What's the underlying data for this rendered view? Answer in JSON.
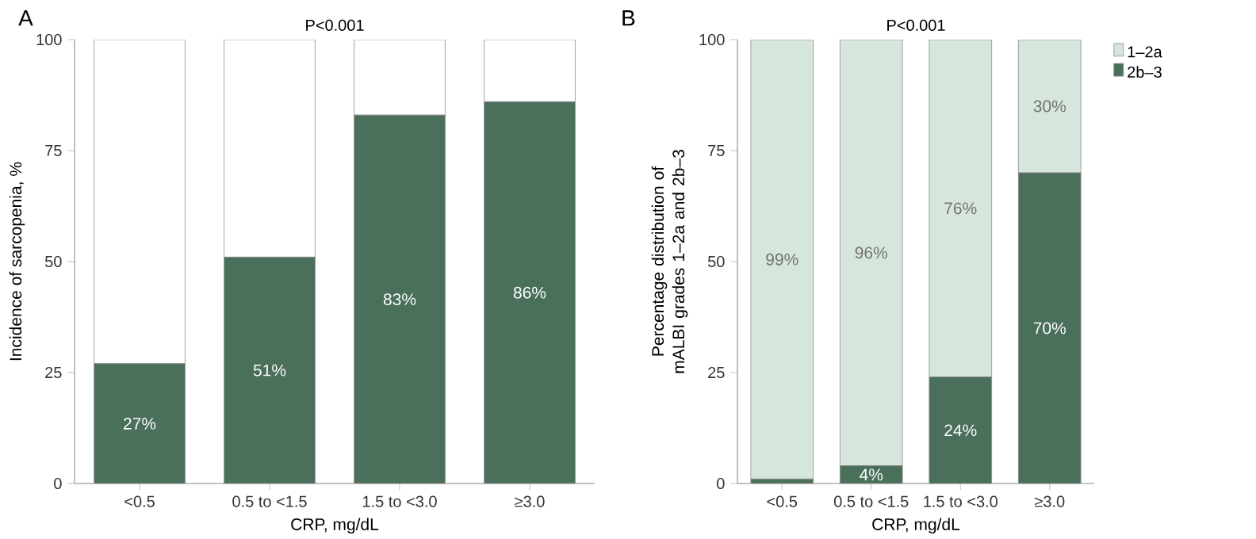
{
  "chart_data": [
    {
      "type": "bar",
      "title": "P<0.001",
      "xlabel": "CRP, mg/dL",
      "ylabel": "Incidence of sarcopenia, %",
      "annotations": [
        "A"
      ],
      "categories": [
        "<0.5",
        "0.5 to <1.5",
        "1.5 to <3.0",
        "≥3.0"
      ],
      "stacked": true,
      "ylim": [
        0,
        100
      ],
      "yticks": [
        0,
        25,
        50,
        75,
        100
      ],
      "legend": false,
      "series": [
        {
          "color": "#4a6f5a",
          "values": [
            27,
            51,
            83,
            86
          ],
          "value_labels": [
            "27%",
            "51%",
            "83%",
            "86%"
          ]
        },
        {
          "color": "#ffffff",
          "values": [
            73,
            49,
            17,
            14
          ],
          "value_labels": [
            null,
            null,
            null,
            null
          ]
        }
      ]
    },
    {
      "type": "bar",
      "title": "P<0.001",
      "xlabel": "CRP, mg/dL",
      "ylabel": "Percentage distribution of mALBI grades 1–2a and 2b–3",
      "annotations": [
        "B"
      ],
      "categories": [
        "<0.5",
        "0.5 to <1.5",
        "1.5 to <3.0",
        "≥3.0"
      ],
      "stacked": true,
      "ylim": [
        0,
        100
      ],
      "yticks": [
        0,
        25,
        50,
        75,
        100
      ],
      "legend": "right",
      "series": [
        {
          "name": "2b–3",
          "color": "#4a6f5a",
          "values": [
            1,
            4,
            24,
            70
          ],
          "value_labels": [
            null,
            "4%",
            "24%",
            "70%"
          ]
        },
        {
          "name": "1–2a",
          "color": "#d6e6dc",
          "values": [
            99,
            96,
            76,
            30
          ],
          "value_labels": [
            "99%",
            "96%",
            "76%",
            "30%"
          ]
        }
      ]
    }
  ]
}
